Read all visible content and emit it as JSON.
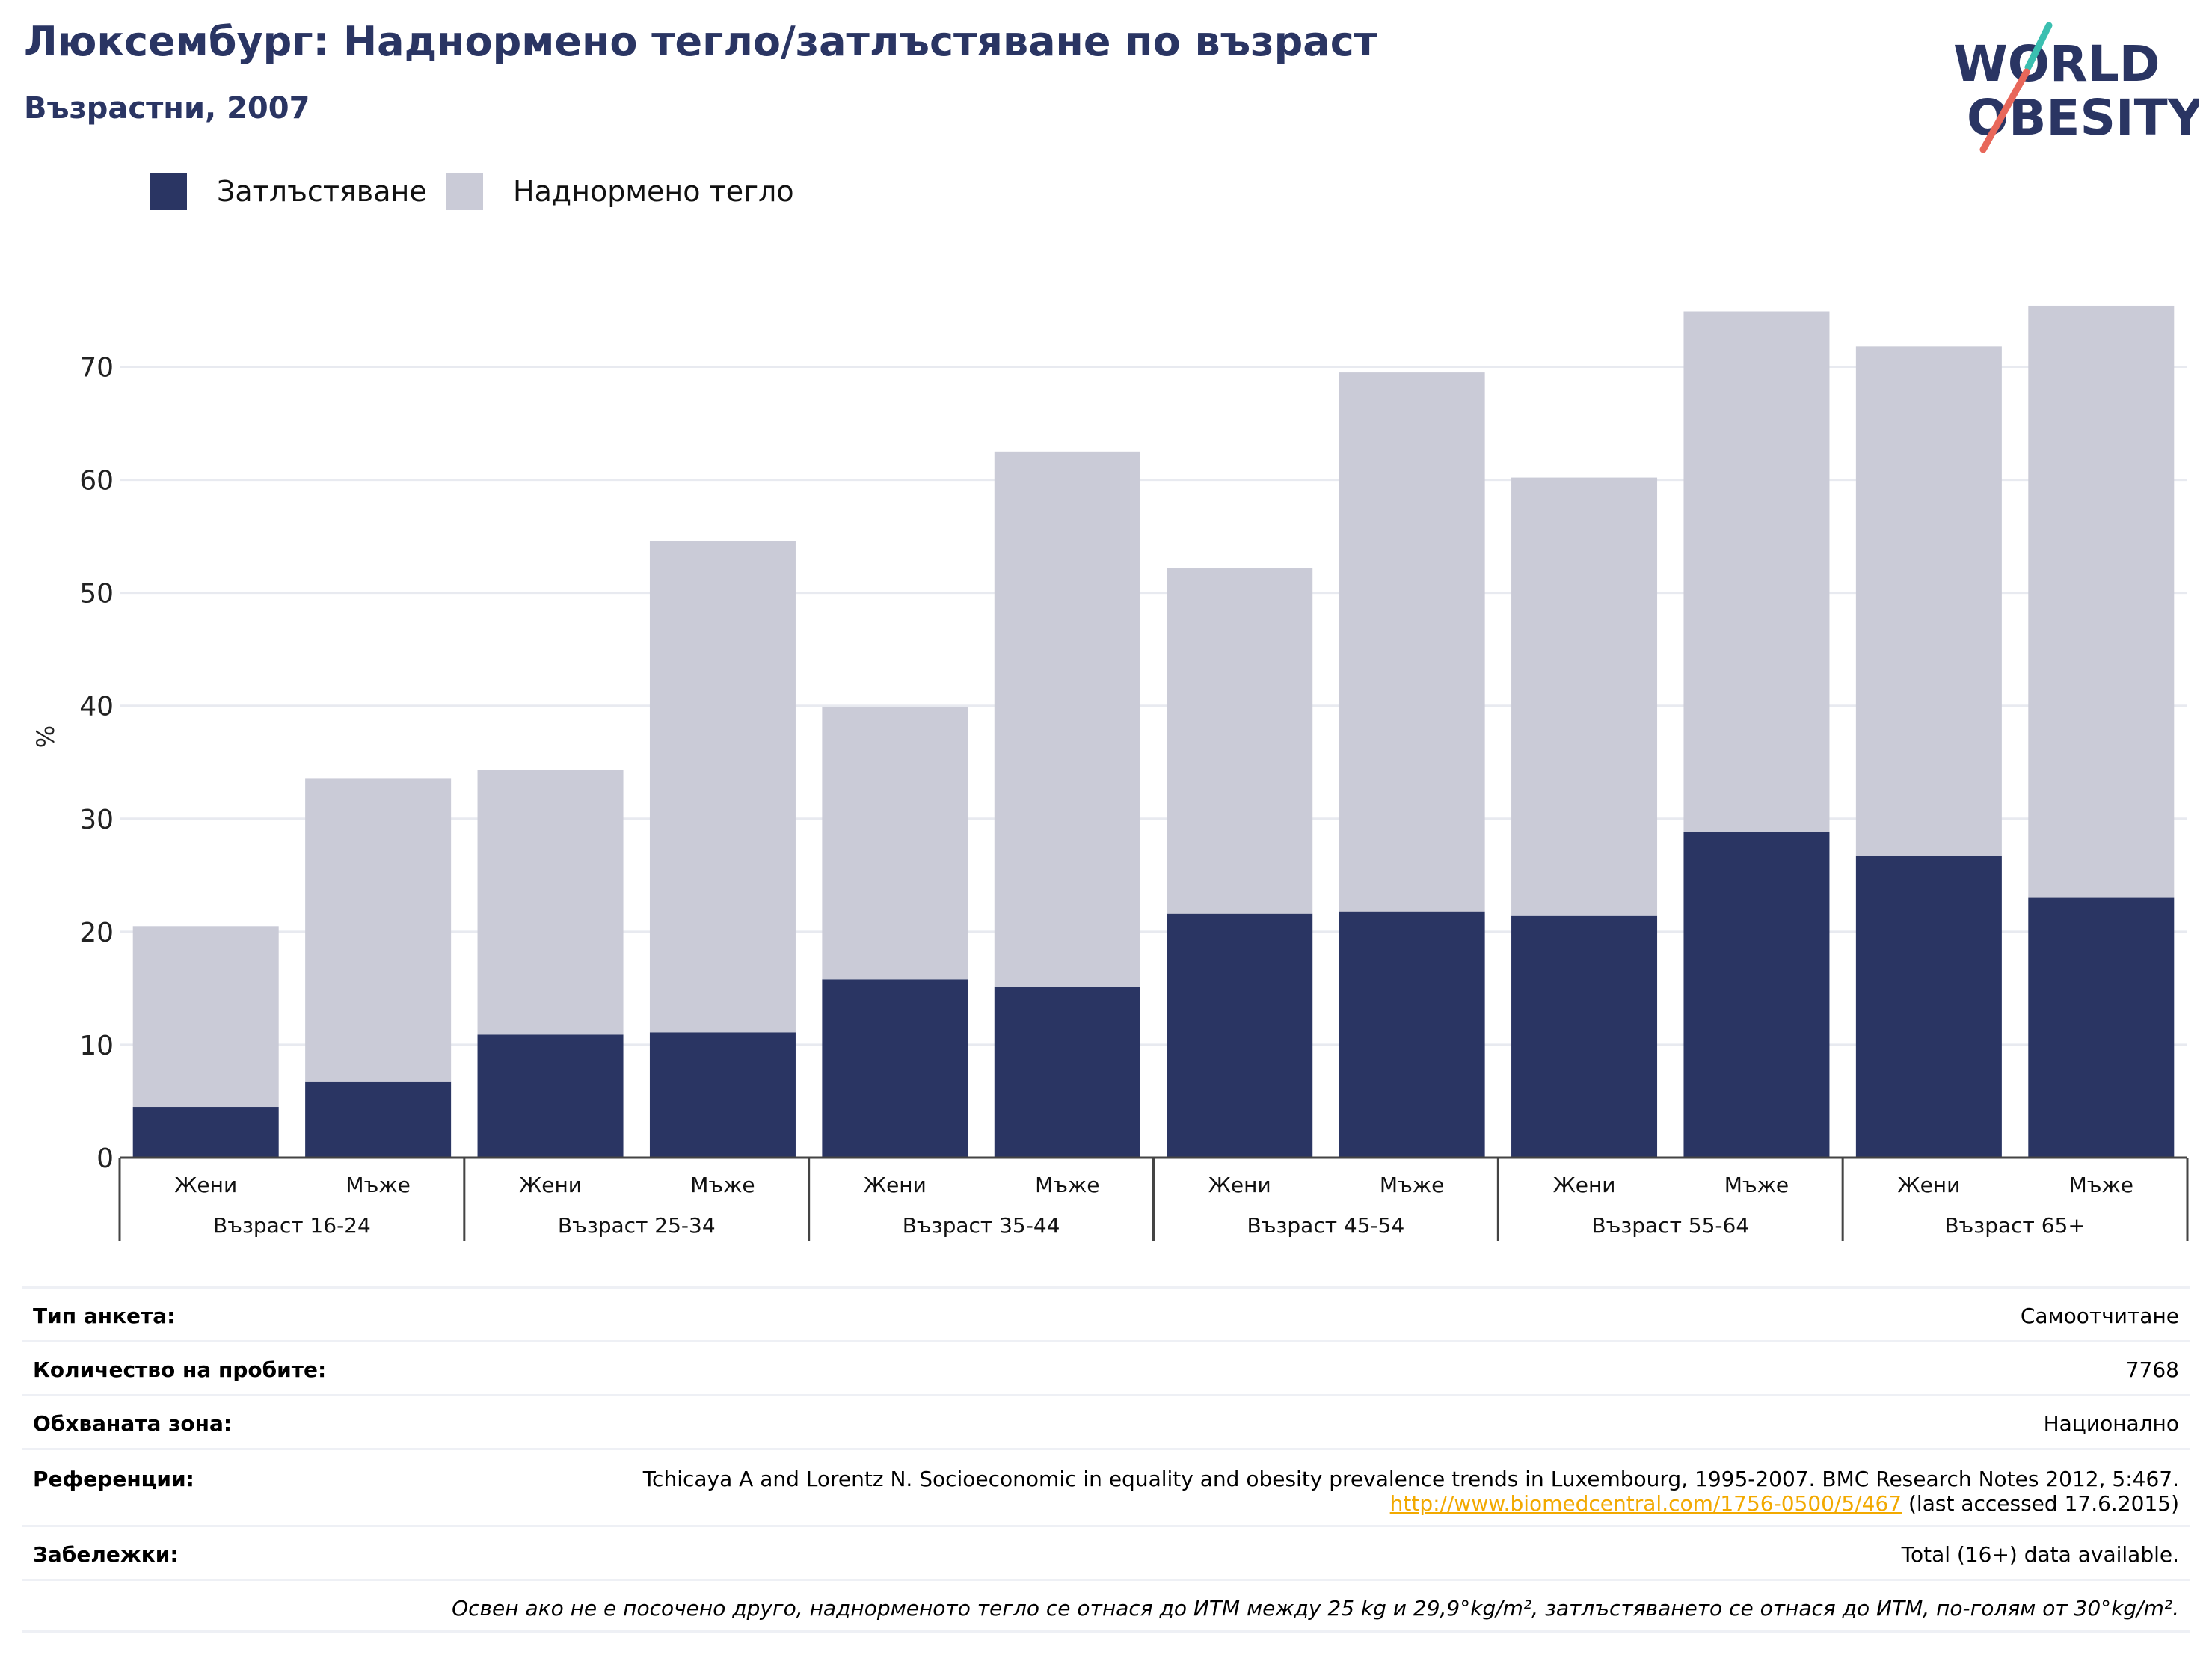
{
  "header": {
    "title": "Люксембург: Наднормено тегло/затлъстяване по възраст",
    "subtitle": "Възрастни, 2007"
  },
  "logo": {
    "line1": "WORLD",
    "line2": "OBESITY",
    "colors": {
      "text": "#2a3563",
      "slash_red": "#e8675a",
      "slash_teal": "#3bbfb0"
    }
  },
  "colors": {
    "obesity": "#2a3563",
    "overweight": "#cacbd7",
    "grid": "#e8eaf0",
    "axis": "#444444"
  },
  "chart_data": {
    "type": "bar",
    "stacked": true,
    "ylabel": "%",
    "ylim": [
      0,
      75
    ],
    "yticks": [
      0,
      10,
      20,
      30,
      40,
      50,
      60,
      70
    ],
    "grid": true,
    "legend_position": "top-left",
    "groups": [
      "Възраст 16-24",
      "Възраст 25-34",
      "Възраст 35-44",
      "Възраст 45-54",
      "Възраст 55-64",
      "Възраст 65+"
    ],
    "subcategories": [
      "Жени",
      "Мъже"
    ],
    "series": [
      {
        "name": "Затлъстяване",
        "key": "obesity",
        "values": [
          4.5,
          6.7,
          10.9,
          11.1,
          15.8,
          15.1,
          21.6,
          21.8,
          21.4,
          28.8,
          26.7,
          23.0
        ]
      },
      {
        "name": "Наднормено тегло",
        "key": "overweight",
        "values": [
          16.0,
          26.9,
          23.4,
          43.5,
          24.1,
          47.4,
          30.6,
          47.7,
          38.8,
          46.1,
          45.1,
          52.4
        ]
      }
    ]
  },
  "info": {
    "survey_type": {
      "label": "Тип анкета:",
      "value": "Самоотчитане"
    },
    "sample_size": {
      "label": "Количество на пробите:",
      "value": "7768"
    },
    "area": {
      "label": "Обхваната зона:",
      "value": "Национално"
    },
    "references": {
      "label": "Референции:",
      "text_before": "Tchicaya A and Lorentz N. Socioeconomic in equality and obesity prevalence trends in Luxembourg, 1995-2007. BMC Research Notes 2012, 5:467. ",
      "link": "http://www.biomedcentral.com/1756-0500/5/467",
      "text_after": " (last accessed 17.6.2015)"
    },
    "notes": {
      "label": "Забележки:",
      "value": "Total (16+) data available."
    },
    "definition": "Освен ако не е посочено друго, наднорменото тегло се отнася до ИТМ между 25 kg и 29,9°kg/m², затлъстяването се отнася до ИТМ, по-голям от 30°kg/m²."
  }
}
